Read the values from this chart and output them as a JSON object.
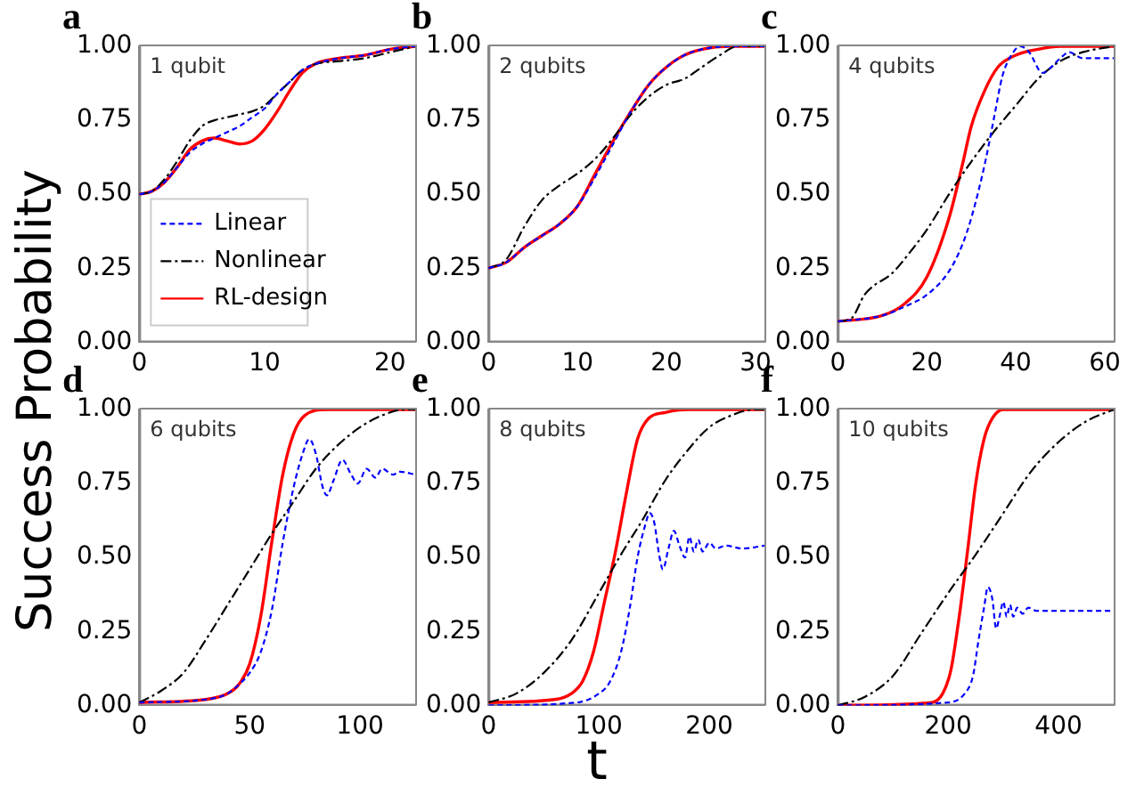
{
  "chart_data": [
    {
      "type": "line",
      "title": "a",
      "ylabel": "Success Probability",
      "annotations": [
        "1 qubit"
      ],
      "xlim": [
        0,
        22
      ],
      "xticks": [
        0,
        10,
        20
      ],
      "ylim": [
        0,
        1
      ],
      "yticks": [
        {
          "value": 0,
          "label": "0.00"
        },
        {
          "value": 0.25,
          "label": "0.25"
        },
        {
          "value": 0.5,
          "label": "0.50"
        },
        {
          "value": 0.75,
          "label": "0.75"
        },
        {
          "value": 1,
          "label": "1.00"
        }
      ],
      "legend": "bottom left",
      "marker": "none",
      "series": [
        {
          "name": "Linear",
          "color": "#0000ff",
          "line_style": "dotted",
          "x": [
            0,
            1,
            2,
            3,
            4,
            5,
            6,
            7,
            8,
            9,
            10,
            11,
            12,
            13,
            14,
            16,
            18,
            20,
            22
          ],
          "values": [
            0.5,
            0.51,
            0.54,
            0.59,
            0.64,
            0.67,
            0.69,
            0.71,
            0.73,
            0.76,
            0.79,
            0.84,
            0.88,
            0.92,
            0.94,
            0.96,
            0.97,
            0.99,
            1.0
          ]
        },
        {
          "name": "Nonlinear",
          "color": "#000000",
          "line_style": "dashed",
          "x": [
            0,
            1,
            2,
            3,
            4,
            5,
            6,
            7,
            8,
            9,
            10,
            11,
            12,
            13,
            14,
            16,
            18,
            20,
            22
          ],
          "values": [
            0.5,
            0.51,
            0.55,
            0.61,
            0.68,
            0.73,
            0.75,
            0.76,
            0.77,
            0.78,
            0.8,
            0.84,
            0.88,
            0.92,
            0.94,
            0.95,
            0.96,
            0.98,
            1.0
          ]
        },
        {
          "name": "RL-design",
          "color": "#ff0000",
          "line_style": "solid",
          "x": [
            0,
            1,
            2,
            3,
            4,
            5,
            6,
            7,
            8,
            9,
            10,
            11,
            12,
            13,
            14,
            16,
            18,
            20,
            22
          ],
          "values": [
            0.5,
            0.51,
            0.54,
            0.59,
            0.65,
            0.68,
            0.69,
            0.68,
            0.67,
            0.68,
            0.72,
            0.78,
            0.85,
            0.91,
            0.94,
            0.96,
            0.97,
            0.99,
            1.0
          ]
        }
      ]
    },
    {
      "type": "line",
      "title": "b",
      "annotations": [
        "2 qubits"
      ],
      "xlim": [
        0,
        31
      ],
      "xticks": [
        0,
        10,
        20,
        30
      ],
      "ylim": [
        0,
        1
      ],
      "yticks": [
        {
          "value": 0,
          "label": "0.00"
        },
        {
          "value": 0.25,
          "label": "0.25"
        },
        {
          "value": 0.5,
          "label": "0.50"
        },
        {
          "value": 0.75,
          "label": "0.75"
        },
        {
          "value": 1,
          "label": "1.00"
        }
      ],
      "marker": "none",
      "series": [
        {
          "color": "#0000ff",
          "line_style": "dotted",
          "x": [
            0,
            2,
            4,
            6,
            8,
            10,
            12,
            14,
            16,
            18,
            20,
            22,
            24,
            27,
            31
          ],
          "values": [
            0.25,
            0.27,
            0.32,
            0.36,
            0.4,
            0.46,
            0.56,
            0.67,
            0.78,
            0.87,
            0.93,
            0.97,
            0.99,
            1.0,
            1.0
          ]
        },
        {
          "color": "#000000",
          "line_style": "dashed",
          "x": [
            0,
            2,
            4,
            6,
            8,
            10,
            12,
            14,
            16,
            18,
            20,
            22,
            24,
            26,
            28,
            31
          ],
          "values": [
            0.25,
            0.28,
            0.39,
            0.48,
            0.53,
            0.57,
            0.62,
            0.69,
            0.77,
            0.83,
            0.87,
            0.89,
            0.93,
            0.97,
            1.0,
            1.0
          ]
        },
        {
          "color": "#ff0000",
          "line_style": "solid",
          "x": [
            0,
            2,
            4,
            6,
            8,
            10,
            12,
            14,
            16,
            18,
            20,
            22,
            24,
            27,
            31
          ],
          "values": [
            0.25,
            0.27,
            0.32,
            0.36,
            0.4,
            0.46,
            0.57,
            0.68,
            0.78,
            0.87,
            0.93,
            0.97,
            0.99,
            1.0,
            1.0
          ]
        }
      ]
    },
    {
      "type": "line",
      "title": "c",
      "annotations": [
        "4 qubits"
      ],
      "xlim": [
        0,
        62
      ],
      "xticks": [
        0,
        20,
        40,
        60
      ],
      "ylim": [
        0,
        1
      ],
      "yticks": [
        {
          "value": 0,
          "label": "0.00"
        },
        {
          "value": 0.25,
          "label": "0.25"
        },
        {
          "value": 0.5,
          "label": "0.50"
        },
        {
          "value": 0.75,
          "label": "0.75"
        },
        {
          "value": 1,
          "label": "1.00"
        }
      ],
      "marker": "none",
      "series": [
        {
          "color": "#0000ff",
          "line_style": "dotted",
          "x": [
            0,
            10,
            15,
            20,
            25,
            28,
            30,
            33,
            35,
            37,
            39,
            41,
            43,
            46,
            48,
            50,
            52,
            55,
            58,
            62
          ],
          "values": [
            0.07,
            0.09,
            0.12,
            0.16,
            0.24,
            0.33,
            0.42,
            0.6,
            0.75,
            0.9,
            0.97,
            1.0,
            0.98,
            0.91,
            0.93,
            0.96,
            0.98,
            0.96,
            0.96,
            0.96
          ]
        },
        {
          "color": "#000000",
          "line_style": "dashed",
          "x": [
            0,
            3,
            6,
            8,
            12,
            16,
            20,
            25,
            30,
            35,
            40,
            45,
            50,
            55,
            62
          ],
          "values": [
            0.07,
            0.08,
            0.16,
            0.19,
            0.23,
            0.3,
            0.38,
            0.5,
            0.61,
            0.71,
            0.8,
            0.89,
            0.95,
            0.98,
            1.0
          ]
        },
        {
          "color": "#ff0000",
          "line_style": "solid",
          "x": [
            0,
            10,
            15,
            20,
            25,
            28,
            30,
            33,
            36,
            40,
            45,
            50,
            62
          ],
          "values": [
            0.07,
            0.09,
            0.13,
            0.22,
            0.42,
            0.6,
            0.73,
            0.85,
            0.93,
            0.97,
            0.99,
            1.0,
            1.0
          ]
        }
      ]
    },
    {
      "type": "line",
      "title": "d",
      "annotations": [
        "6 qubits"
      ],
      "xlim": [
        0,
        125
      ],
      "xticks": [
        0,
        50,
        100
      ],
      "ylim": [
        0,
        1
      ],
      "yticks": [
        {
          "value": 0,
          "label": "0.00"
        },
        {
          "value": 0.25,
          "label": "0.25"
        },
        {
          "value": 0.5,
          "label": "0.50"
        },
        {
          "value": 0.75,
          "label": "0.75"
        },
        {
          "value": 1,
          "label": "1.00"
        }
      ],
      "marker": "none",
      "series": [
        {
          "color": "#0000ff",
          "line_style": "dotted",
          "x": [
            0,
            30,
            40,
            45,
            50,
            55,
            60,
            65,
            70,
            74,
            77,
            80,
            83,
            85,
            88,
            92,
            96,
            99,
            103,
            107,
            110,
            115,
            118,
            125
          ],
          "values": [
            0.01,
            0.02,
            0.04,
            0.07,
            0.11,
            0.18,
            0.32,
            0.55,
            0.74,
            0.85,
            0.9,
            0.85,
            0.74,
            0.71,
            0.76,
            0.83,
            0.78,
            0.75,
            0.8,
            0.77,
            0.8,
            0.78,
            0.79,
            0.78
          ]
        },
        {
          "color": "#000000",
          "line_style": "dashed",
          "x": [
            0,
            10,
            20,
            30,
            40,
            50,
            60,
            70,
            80,
            90,
            100,
            110,
            120,
            125
          ],
          "values": [
            0.01,
            0.05,
            0.11,
            0.22,
            0.34,
            0.46,
            0.58,
            0.69,
            0.8,
            0.88,
            0.94,
            0.98,
            1.0,
            1.0
          ]
        },
        {
          "color": "#ff0000",
          "line_style": "solid",
          "x": [
            0,
            30,
            40,
            45,
            50,
            55,
            60,
            65,
            70,
            75,
            85,
            125
          ],
          "values": [
            0.01,
            0.02,
            0.04,
            0.07,
            0.14,
            0.3,
            0.55,
            0.78,
            0.92,
            0.98,
            1.0,
            1.0
          ]
        }
      ]
    },
    {
      "type": "line",
      "title": "e",
      "xlabel": "t",
      "annotations": [
        "8 qubits"
      ],
      "xlim": [
        0,
        250
      ],
      "xticks": [
        0,
        100,
        200
      ],
      "ylim": [
        0,
        1
      ],
      "yticks": [
        {
          "value": 0,
          "label": "0.00"
        },
        {
          "value": 0.25,
          "label": "0.25"
        },
        {
          "value": 0.5,
          "label": "0.50"
        },
        {
          "value": 0.75,
          "label": "0.75"
        },
        {
          "value": 1,
          "label": "1.00"
        }
      ],
      "marker": "none",
      "series": [
        {
          "color": "#0000ff",
          "line_style": "dotted",
          "x": [
            0,
            80,
            100,
            110,
            120,
            128,
            135,
            142,
            146,
            150,
            155,
            158,
            163,
            168,
            173,
            178,
            182,
            186,
            190,
            194,
            200,
            206,
            215,
            230,
            250
          ],
          "values": [
            0.0,
            0.01,
            0.04,
            0.08,
            0.18,
            0.33,
            0.5,
            0.61,
            0.65,
            0.62,
            0.5,
            0.46,
            0.53,
            0.59,
            0.54,
            0.5,
            0.57,
            0.52,
            0.56,
            0.52,
            0.55,
            0.53,
            0.54,
            0.53,
            0.54
          ]
        },
        {
          "color": "#000000",
          "line_style": "dashed",
          "x": [
            0,
            25,
            50,
            75,
            100,
            120,
            140,
            160,
            180,
            200,
            220,
            240,
            250
          ],
          "values": [
            0.01,
            0.04,
            0.11,
            0.22,
            0.38,
            0.51,
            0.63,
            0.76,
            0.86,
            0.94,
            0.98,
            1.0,
            1.0
          ]
        },
        {
          "color": "#ff0000",
          "line_style": "solid",
          "x": [
            0,
            60,
            75,
            85,
            95,
            105,
            115,
            125,
            135,
            145,
            160,
            180,
            250
          ],
          "values": [
            0.01,
            0.02,
            0.04,
            0.08,
            0.18,
            0.35,
            0.52,
            0.72,
            0.9,
            0.97,
            0.99,
            1.0,
            1.0
          ]
        }
      ]
    },
    {
      "type": "line",
      "title": "f",
      "annotations": [
        "10 qubits"
      ],
      "xlim": [
        0,
        500
      ],
      "xticks": [
        0,
        200,
        400
      ],
      "ylim": [
        0,
        1
      ],
      "yticks": [
        {
          "value": 0,
          "label": "0.00"
        },
        {
          "value": 0.25,
          "label": "0.25"
        },
        {
          "value": 0.5,
          "label": "0.50"
        },
        {
          "value": 0.75,
          "label": "0.75"
        },
        {
          "value": 1,
          "label": "1.00"
        }
      ],
      "marker": "none",
      "series": [
        {
          "color": "#0000ff",
          "line_style": "dotted",
          "x": [
            0,
            200,
            230,
            245,
            255,
            265,
            272,
            280,
            287,
            293,
            300,
            306,
            312,
            318,
            325,
            335,
            345,
            360,
            400,
            500
          ],
          "values": [
            0.0,
            0.01,
            0.04,
            0.1,
            0.22,
            0.33,
            0.4,
            0.36,
            0.26,
            0.3,
            0.35,
            0.3,
            0.34,
            0.3,
            0.33,
            0.31,
            0.33,
            0.32,
            0.32,
            0.32
          ]
        },
        {
          "color": "#000000",
          "line_style": "dashed",
          "x": [
            0,
            50,
            100,
            150,
            200,
            250,
            300,
            350,
            400,
            450,
            500
          ],
          "values": [
            0.0,
            0.03,
            0.1,
            0.24,
            0.38,
            0.51,
            0.65,
            0.79,
            0.89,
            0.96,
            1.0
          ]
        },
        {
          "color": "#ff0000",
          "line_style": "solid",
          "x": [
            0,
            170,
            190,
            205,
            220,
            235,
            250,
            265,
            280,
            300,
            320,
            500
          ],
          "values": [
            0.0,
            0.01,
            0.04,
            0.12,
            0.3,
            0.52,
            0.75,
            0.9,
            0.97,
            1.0,
            1.0,
            1.0
          ]
        }
      ]
    }
  ]
}
